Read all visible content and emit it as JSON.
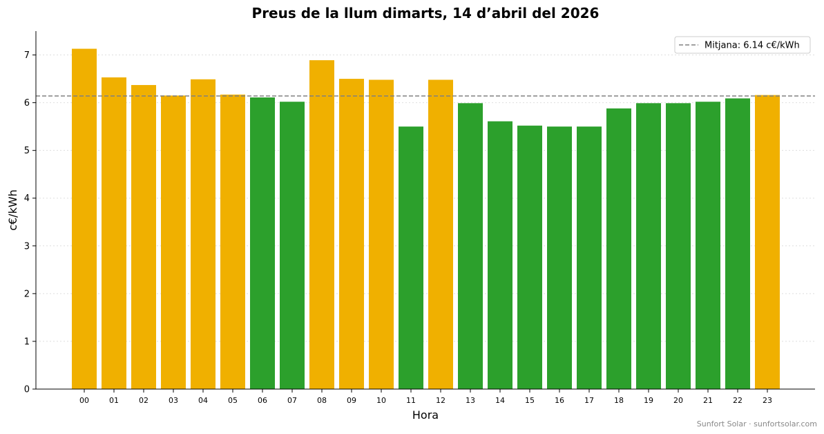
{
  "chart_data": {
    "type": "bar",
    "title": "Preus de la llum dimarts, 14 d’abril del 2026",
    "xlabel": "Hora",
    "ylabel": "c€/kWh",
    "categories": [
      "00",
      "01",
      "02",
      "03",
      "04",
      "05",
      "06",
      "07",
      "08",
      "09",
      "10",
      "11",
      "12",
      "13",
      "14",
      "15",
      "16",
      "17",
      "18",
      "19",
      "20",
      "21",
      "22",
      "23"
    ],
    "values": [
      7.13,
      6.53,
      6.37,
      6.15,
      6.49,
      6.17,
      6.11,
      6.02,
      6.89,
      6.5,
      6.48,
      5.5,
      6.48,
      5.99,
      5.61,
      5.52,
      5.5,
      5.5,
      5.88,
      5.99,
      5.99,
      6.02,
      6.09,
      6.16
    ],
    "ylim": [
      0,
      7.5
    ],
    "yticks": [
      0,
      1,
      2,
      3,
      4,
      5,
      6,
      7
    ],
    "grid": "horizontal dotted",
    "mean_line": {
      "value": 6.14,
      "label": "Mitjana: 6.14 c€/kWh"
    },
    "legend_position": "top-right",
    "colors": {
      "above_mean": "#f0b000",
      "below_mean": "#2ca02c",
      "mean_line": "#808080"
    }
  },
  "footer": {
    "credit": "Sunfort Solar · sunfortsolar.com"
  }
}
